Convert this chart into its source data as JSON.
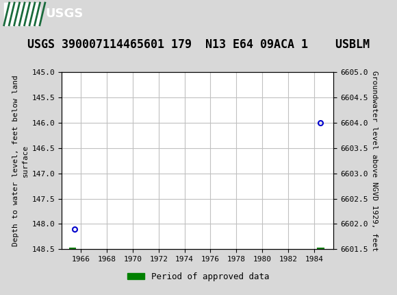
{
  "title": "USGS 390007114465601 179  N13 E64 09ACA 1    USBLM",
  "ylabel_left": "Depth to water level, feet below land\nsurface",
  "ylabel_right": "Groundwater level above NGVD 1929, feet",
  "xlim": [
    1964.5,
    1985.5
  ],
  "ylim_left": [
    145.0,
    148.5
  ],
  "ylim_right": [
    6601.5,
    6605.0
  ],
  "xticks": [
    1966,
    1968,
    1970,
    1972,
    1974,
    1976,
    1978,
    1980,
    1982,
    1984
  ],
  "yticks_left": [
    145.0,
    145.5,
    146.0,
    146.5,
    147.0,
    147.5,
    148.0,
    148.5
  ],
  "yticks_right": [
    6601.5,
    6602.0,
    6602.5,
    6603.0,
    6603.5,
    6604.0,
    6604.5,
    6605.0
  ],
  "data_points": [
    {
      "year": 1965.5,
      "depth": 148.1
    },
    {
      "year": 1984.5,
      "depth": 146.0
    }
  ],
  "approved_data_segments": [
    {
      "x_start": 1965.1,
      "x_end": 1965.6
    },
    {
      "x_start": 1984.2,
      "x_end": 1984.8
    }
  ],
  "point_color": "#0000cc",
  "point_marker": "o",
  "point_markersize": 5,
  "approved_color": "#008000",
  "legend_label": "Period of approved data",
  "header_bg_color": "#1a6b3c",
  "header_text_color": "#ffffff",
  "bg_color": "#d8d8d8",
  "plot_bg_color": "#ffffff",
  "grid_color": "#c0c0c0",
  "title_fontsize": 12,
  "axis_label_fontsize": 8,
  "tick_fontsize": 8
}
